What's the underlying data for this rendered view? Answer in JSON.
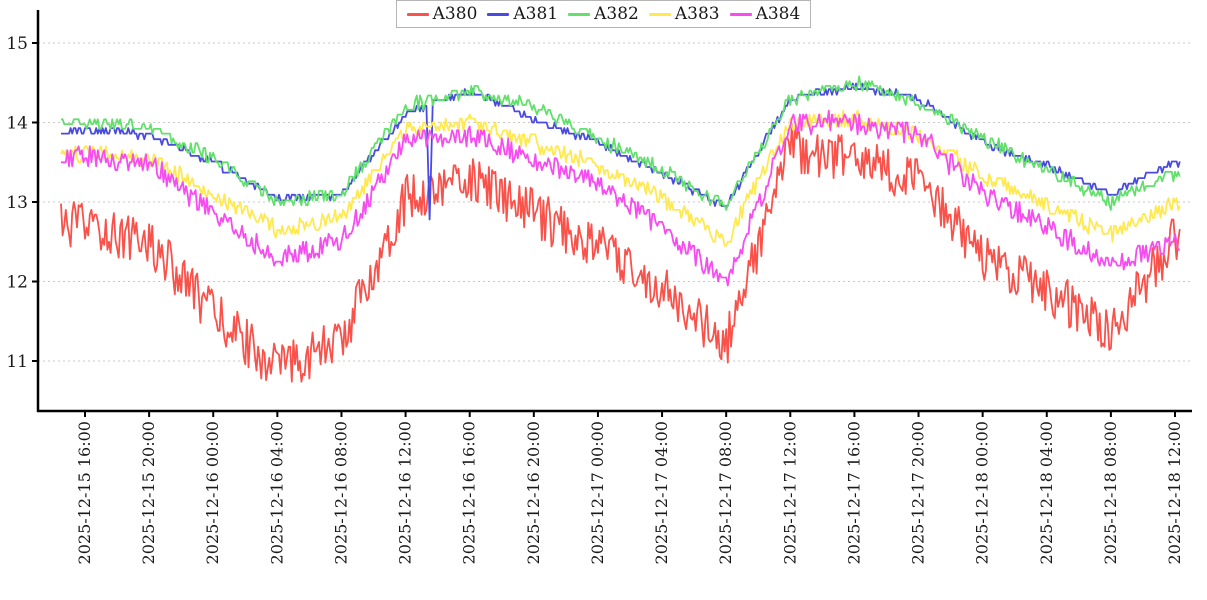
{
  "chart_data": {
    "type": "line",
    "title": "",
    "xlabel": "",
    "ylabel": "",
    "grid": "horizontal-dashed",
    "grid_color": "#c9c9c9",
    "axis_color": "#000000",
    "background": "#ffffff",
    "legend_position": "bottom-center",
    "y_ticks": [
      11,
      12,
      13,
      14,
      15
    ],
    "y_range": [
      10.37,
      15.42
    ],
    "x_range_hours": [
      -1.5,
      68.3
    ],
    "x_hours": [
      0,
      4,
      8,
      12,
      16,
      20,
      24,
      28,
      32,
      36,
      40,
      44,
      48,
      52,
      56,
      60,
      64,
      68
    ],
    "x_tick_labels": [
      "2025-12-15 16:00",
      "2025-12-15 20:00",
      "2025-12-16 00:00",
      "2025-12-16 04:00",
      "2025-12-16 08:00",
      "2025-12-16 12:00",
      "2025-12-16 16:00",
      "2025-12-16 20:00",
      "2025-12-17 00:00",
      "2025-12-17 04:00",
      "2025-12-17 08:00",
      "2025-12-17 12:00",
      "2025-12-17 16:00",
      "2025-12-17 20:00",
      "2025-12-18 00:00",
      "2025-12-18 04:00",
      "2025-12-18 08:00",
      "2025-12-18 12:00"
    ],
    "series": [
      {
        "name": "A380",
        "color": "#f8524a",
        "noise": 0.3,
        "quant": 0.02,
        "values": [
          12.7,
          12.5,
          11.6,
          10.9,
          11.25,
          13.05,
          13.3,
          12.85,
          12.45,
          11.9,
          11.2,
          13.7,
          13.5,
          13.3,
          12.3,
          11.9,
          11.35,
          12.55
        ]
      },
      {
        "name": "A381",
        "color": "#4a4ae0",
        "noise": 0.04,
        "quant": 0.07,
        "spikes": [
          {
            "t": 21.5,
            "v": 12.78
          }
        ],
        "values": [
          13.9,
          13.85,
          13.5,
          13.05,
          13.1,
          14.1,
          14.4,
          14.05,
          13.75,
          13.35,
          12.95,
          14.3,
          14.45,
          14.3,
          13.75,
          13.45,
          13.1,
          13.5
        ]
      },
      {
        "name": "A382",
        "color": "#63e06c",
        "noise": 0.08,
        "quant": 0.06,
        "values": [
          14.0,
          13.95,
          13.55,
          13.0,
          13.1,
          14.2,
          14.4,
          14.2,
          13.8,
          13.4,
          12.95,
          14.3,
          14.5,
          14.25,
          13.8,
          13.4,
          13.0,
          13.35
        ]
      },
      {
        "name": "A383",
        "color": "#ffe94e",
        "noise": 0.1,
        "quant": 0.05,
        "values": [
          13.6,
          13.55,
          13.1,
          12.65,
          12.8,
          13.9,
          14.0,
          13.75,
          13.45,
          13.05,
          12.5,
          14.0,
          14.05,
          13.85,
          13.35,
          12.95,
          12.6,
          13.0
        ]
      },
      {
        "name": "A384",
        "color": "#f64cf0",
        "noise": 0.13,
        "quant": 0.05,
        "values": [
          13.55,
          13.5,
          12.85,
          12.3,
          12.5,
          13.75,
          13.85,
          13.55,
          13.2,
          12.7,
          11.95,
          14.0,
          14.0,
          13.85,
          13.1,
          12.7,
          12.2,
          12.5
        ]
      }
    ]
  }
}
